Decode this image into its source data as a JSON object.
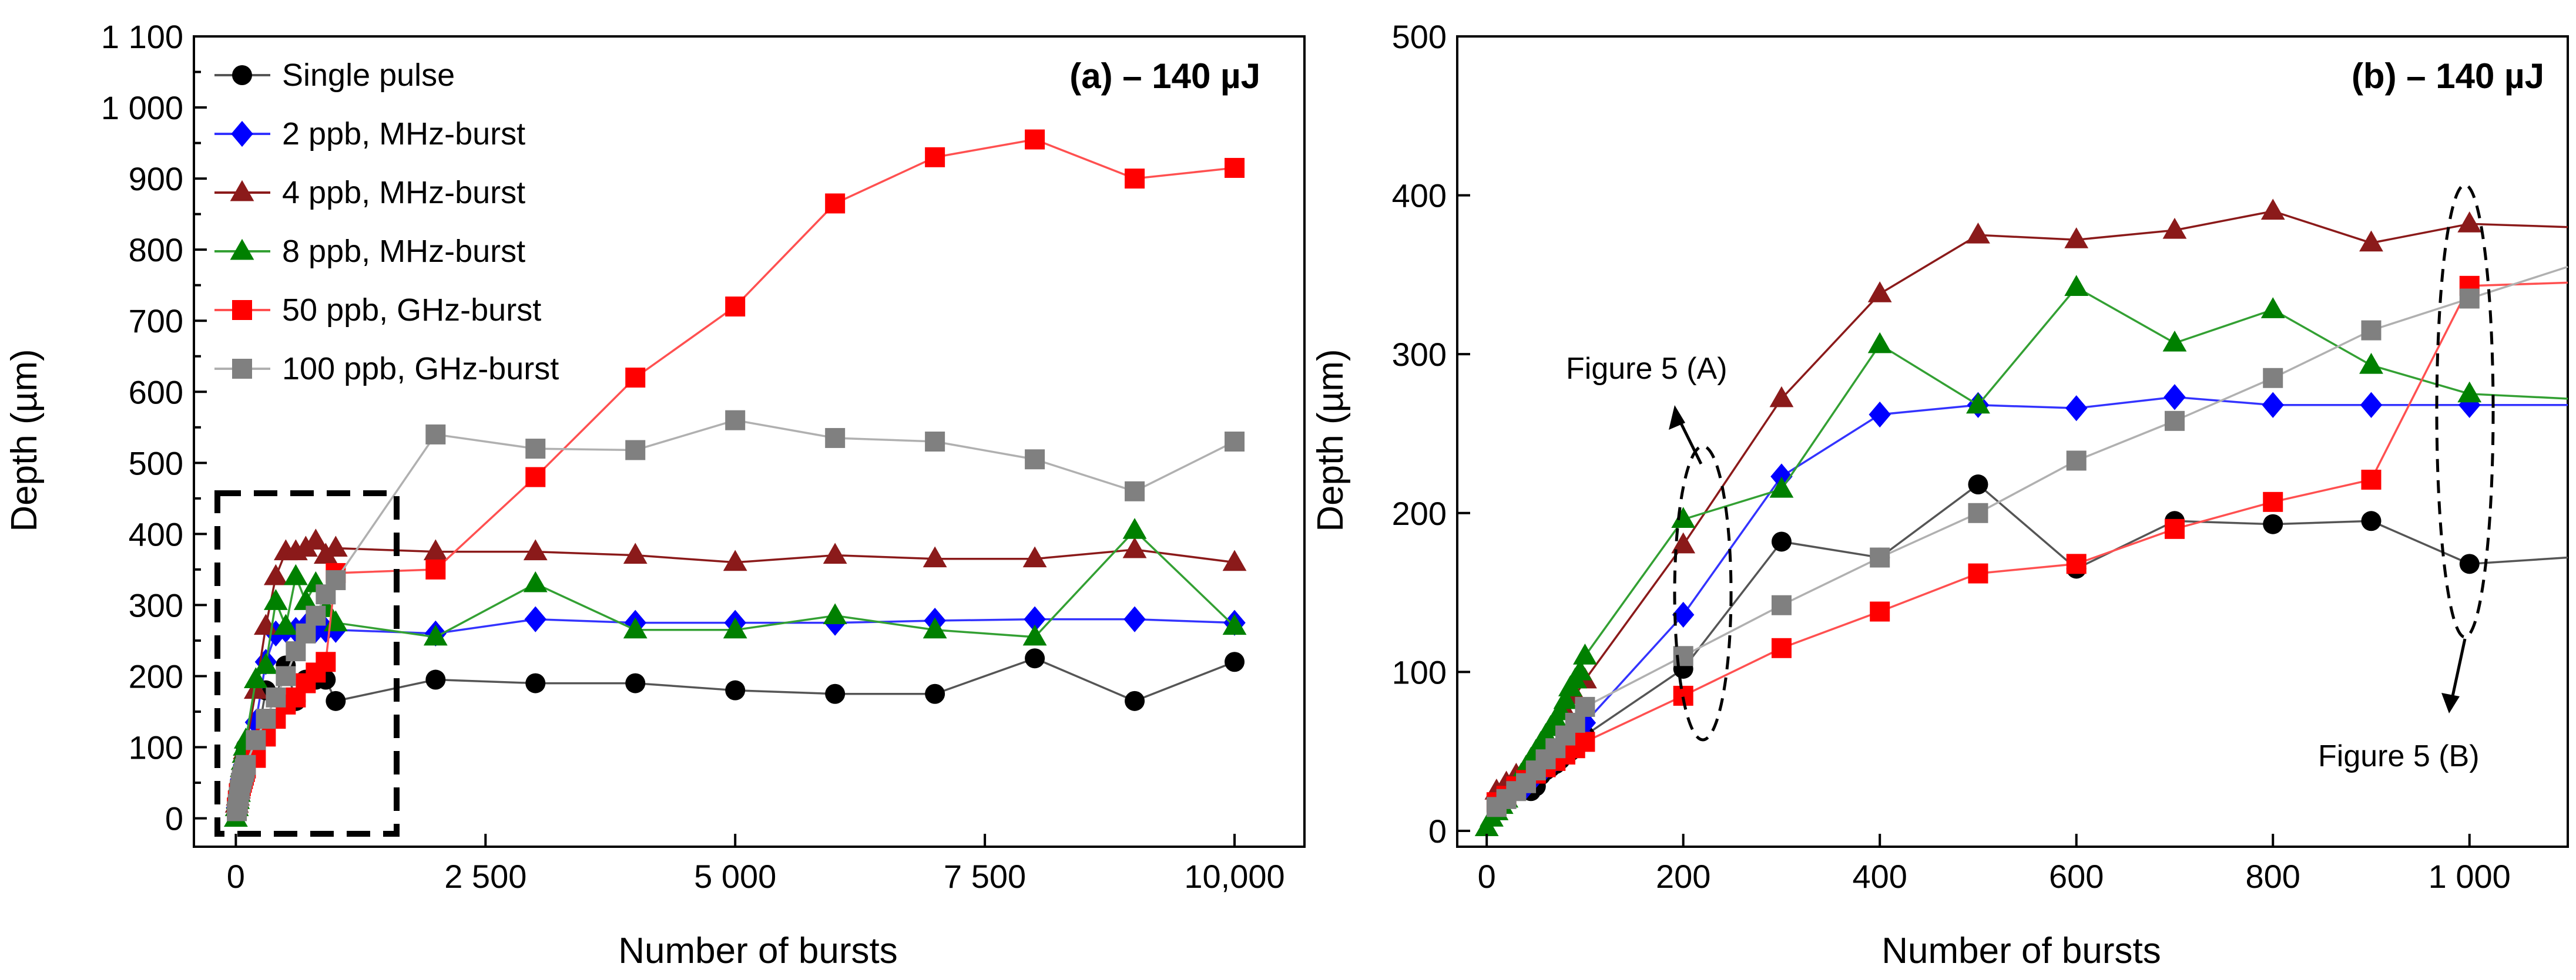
{
  "chart_data": [
    {
      "type": "line",
      "panel": "a",
      "title": "(a) – 140 µJ",
      "xlabel": "Number of bursts",
      "ylabel": "Depth (µm)",
      "xlim": [
        -420,
        10700
      ],
      "ylim": [
        -40,
        1100
      ],
      "xticks": [
        0,
        2500,
        5000,
        7500,
        10000
      ],
      "xtick_labels": [
        "0",
        "2 500",
        "5 000",
        "7 500",
        "10,000"
      ],
      "yticks": [
        0,
        50,
        100,
        150,
        200,
        250,
        300,
        350,
        400,
        450,
        500,
        550,
        600,
        650,
        700,
        750,
        800,
        850,
        900,
        950,
        1000,
        1050,
        1100
      ],
      "ytick_labels": [
        "0",
        "",
        "100",
        "",
        "200",
        "",
        "300",
        "",
        "400",
        "",
        "500",
        "",
        "600",
        "",
        "700",
        "",
        "800",
        "",
        "900",
        "",
        "1 000",
        "",
        "1 100"
      ],
      "legend": [
        "Single pulse",
        "2 ppb, MHz-burst",
        "4 ppb, MHz-burst",
        "8 ppb, MHz-burst",
        "50 ppb, GHz-burst",
        "100 ppb, GHz-burst"
      ],
      "series": [
        {
          "name": "Single pulse",
          "color": "#000000",
          "line_color": "#555555",
          "marker": "circle",
          "x": [
            10,
            20,
            30,
            40,
            50,
            60,
            70,
            80,
            90,
            100,
            200,
            300,
            400,
            500,
            600,
            700,
            800,
            900,
            1000,
            2000,
            3000,
            4000,
            5000,
            6000,
            7000,
            8000,
            9000,
            10000
          ],
          "y": [
            8,
            20,
            30,
            40,
            50,
            60,
            70,
            80,
            90,
            100,
            100,
            180,
            170,
            215,
            165,
            195,
            195,
            195,
            165,
            195,
            190,
            190,
            180,
            175,
            175,
            225,
            165,
            220
          ]
        },
        {
          "name": "2 ppb, MHz-burst",
          "color": "#0000ff",
          "line_color": "#3333ff",
          "marker": "diamond",
          "x": [
            10,
            20,
            30,
            40,
            50,
            60,
            70,
            80,
            90,
            100,
            200,
            300,
            400,
            500,
            600,
            700,
            800,
            900,
            1000,
            2000,
            3000,
            4000,
            5000,
            6000,
            7000,
            8000,
            9000,
            10000
          ],
          "y": [
            15,
            25,
            35,
            45,
            55,
            60,
            65,
            75,
            80,
            85,
            135,
            220,
            260,
            265,
            265,
            270,
            265,
            265,
            265,
            260,
            280,
            275,
            275,
            275,
            278,
            280,
            280,
            275
          ]
        },
        {
          "name": "4 ppb, MHz-burst",
          "color": "#8b1a1a",
          "line_color": "#8b1a1a",
          "marker": "triangle",
          "x": [
            10,
            20,
            30,
            40,
            50,
            60,
            70,
            80,
            90,
            100,
            200,
            300,
            400,
            500,
            600,
            700,
            800,
            900,
            1000,
            2000,
            3000,
            4000,
            5000,
            6000,
            7000,
            8000,
            9000,
            10000
          ],
          "y": [
            20,
            30,
            40,
            50,
            60,
            70,
            80,
            90,
            95,
            100,
            180,
            270,
            340,
            375,
            375,
            380,
            390,
            370,
            380,
            375,
            375,
            370,
            360,
            370,
            365,
            365,
            378,
            360
          ]
        },
        {
          "name": "8 ppb, MHz-burst",
          "color": "#008000",
          "line_color": "#33a033",
          "marker": "triangle",
          "x": [
            0,
            10,
            20,
            30,
            40,
            50,
            60,
            70,
            80,
            90,
            100,
            200,
            300,
            400,
            500,
            600,
            700,
            800,
            900,
            1000,
            2000,
            3000,
            4000,
            5000,
            6000,
            7000,
            8000,
            9000,
            10000
          ],
          "y": [
            0,
            15,
            25,
            35,
            50,
            60,
            70,
            80,
            90,
            100,
            110,
            195,
            215,
            305,
            270,
            340,
            305,
            330,
            295,
            275,
            255,
            330,
            265,
            265,
            285,
            265,
            255,
            405,
            270
          ]
        },
        {
          "name": "50 ppb, GHz-burst",
          "color": "#ff0000",
          "line_color": "#ff5050",
          "marker": "square",
          "x": [
            10,
            20,
            30,
            40,
            50,
            60,
            70,
            80,
            90,
            100,
            200,
            300,
            400,
            500,
            600,
            700,
            800,
            900,
            1000,
            2000,
            3000,
            4000,
            5000,
            6000,
            7000,
            8000,
            9000,
            10000
          ],
          "y": [
            15,
            25,
            35,
            40,
            45,
            50,
            55,
            60,
            65,
            70,
            85,
            115,
            140,
            160,
            170,
            190,
            205,
            220,
            345,
            350,
            480,
            620,
            720,
            865,
            930,
            955,
            900,
            915
          ]
        },
        {
          "name": "100 ppb, GHz-burst",
          "color": "#808080",
          "line_color": "#b0b0b0",
          "marker": "square",
          "x": [
            10,
            20,
            30,
            40,
            50,
            60,
            70,
            80,
            90,
            100,
            200,
            300,
            400,
            500,
            600,
            700,
            800,
            900,
            1000,
            2000,
            3000,
            4000,
            5000,
            6000,
            7000,
            8000,
            9000,
            10000
          ],
          "y": [
            10,
            20,
            30,
            40,
            50,
            55,
            60,
            65,
            70,
            75,
            110,
            140,
            170,
            200,
            235,
            260,
            285,
            315,
            335,
            540,
            520,
            518,
            560,
            535,
            530,
            505,
            460,
            530
          ]
        }
      ]
    },
    {
      "type": "line",
      "panel": "b",
      "title": "(b) – 140 µJ",
      "xlabel": "Number of bursts",
      "ylabel": "Depth (µm)",
      "xlim": [
        -30,
        1100
      ],
      "ylim": [
        -10,
        500
      ],
      "xticks": [
        0,
        200,
        400,
        600,
        800,
        1000
      ],
      "xtick_labels": [
        "0",
        "200",
        "400",
        "600",
        "800",
        "1 000"
      ],
      "yticks": [
        0,
        100,
        200,
        300,
        400,
        500
      ],
      "ytick_labels": [
        "0",
        "100",
        "200",
        "300",
        "400",
        "500"
      ],
      "annotations": [
        "Figure 5 (A)",
        "Figure 5 (B)"
      ],
      "series": [
        {
          "name": "Single pulse",
          "color": "#000000",
          "line_color": "#555555",
          "marker": "circle",
          "x": [
            40,
            45,
            50,
            55,
            60,
            65,
            70,
            75,
            80,
            85,
            90,
            95,
            100,
            200,
            300,
            400,
            500,
            600,
            700,
            800,
            900,
            1000,
            1100
          ],
          "y": [
            30,
            25,
            28,
            35,
            38,
            40,
            42,
            45,
            48,
            50,
            55,
            58,
            60,
            102,
            182,
            172,
            218,
            165,
            195,
            193,
            195,
            168,
            172
          ],
          "last_marker": false
        },
        {
          "name": "2 ppb, MHz-burst",
          "color": "#0000ff",
          "line_color": "#3333ff",
          "marker": "diamond",
          "x": [
            40,
            45,
            50,
            55,
            60,
            65,
            70,
            75,
            80,
            85,
            90,
            95,
            100,
            200,
            300,
            400,
            500,
            600,
            700,
            800,
            900,
            1000,
            1100
          ],
          "y": [
            28,
            32,
            35,
            38,
            40,
            42,
            45,
            48,
            52,
            55,
            58,
            62,
            68,
            136,
            223,
            262,
            268,
            266,
            273,
            268,
            268,
            268,
            268
          ],
          "last_marker": false
        },
        {
          "name": "4 ppb, MHz-burst",
          "color": "#8b1a1a",
          "line_color": "#8b1a1a",
          "marker": "triangle",
          "x": [
            10,
            20,
            30,
            40,
            50,
            60,
            70,
            80,
            90,
            100,
            200,
            300,
            400,
            500,
            600,
            700,
            800,
            900,
            1000,
            1100
          ],
          "y": [
            25,
            30,
            35,
            40,
            48,
            55,
            65,
            75,
            85,
            95,
            180,
            272,
            338,
            375,
            372,
            378,
            390,
            370,
            382,
            380
          ],
          "last_marker": false
        },
        {
          "name": "8 ppb, MHz-burst",
          "color": "#008000",
          "line_color": "#33a033",
          "marker": "triangle",
          "x": [
            0,
            5,
            10,
            15,
            20,
            25,
            30,
            35,
            40,
            45,
            50,
            55,
            60,
            65,
            70,
            75,
            80,
            85,
            90,
            95,
            100,
            200,
            300,
            400,
            500,
            600,
            700,
            800,
            900,
            1000,
            1100
          ],
          "y": [
            2,
            8,
            12,
            16,
            20,
            25,
            30,
            35,
            40,
            45,
            50,
            55,
            60,
            65,
            70,
            75,
            82,
            90,
            95,
            100,
            110,
            196,
            215,
            306,
            268,
            342,
            307,
            328,
            293,
            275,
            272
          ],
          "last_marker": false
        },
        {
          "name": "50 ppb, GHz-burst",
          "color": "#ff0000",
          "line_color": "#ff5050",
          "marker": "square",
          "x": [
            10,
            20,
            30,
            40,
            50,
            60,
            70,
            80,
            90,
            100,
            200,
            300,
            400,
            500,
            600,
            700,
            800,
            900,
            1000,
            1100
          ],
          "y": [
            18,
            22,
            28,
            32,
            36,
            40,
            44,
            48,
            52,
            56,
            85,
            115,
            138,
            162,
            168,
            190,
            207,
            221,
            343,
            345
          ],
          "last_marker": false
        },
        {
          "name": "100 ppb, GHz-burst",
          "color": "#808080",
          "line_color": "#b0b0b0",
          "marker": "square",
          "x": [
            10,
            20,
            30,
            40,
            50,
            60,
            70,
            80,
            90,
            100,
            200,
            300,
            400,
            500,
            600,
            700,
            800,
            900,
            1000,
            1100
          ],
          "y": [
            15,
            20,
            25,
            30,
            38,
            45,
            52,
            60,
            68,
            78,
            110,
            142,
            172,
            200,
            233,
            258,
            285,
            315,
            335,
            355
          ],
          "last_marker": false
        }
      ]
    }
  ]
}
